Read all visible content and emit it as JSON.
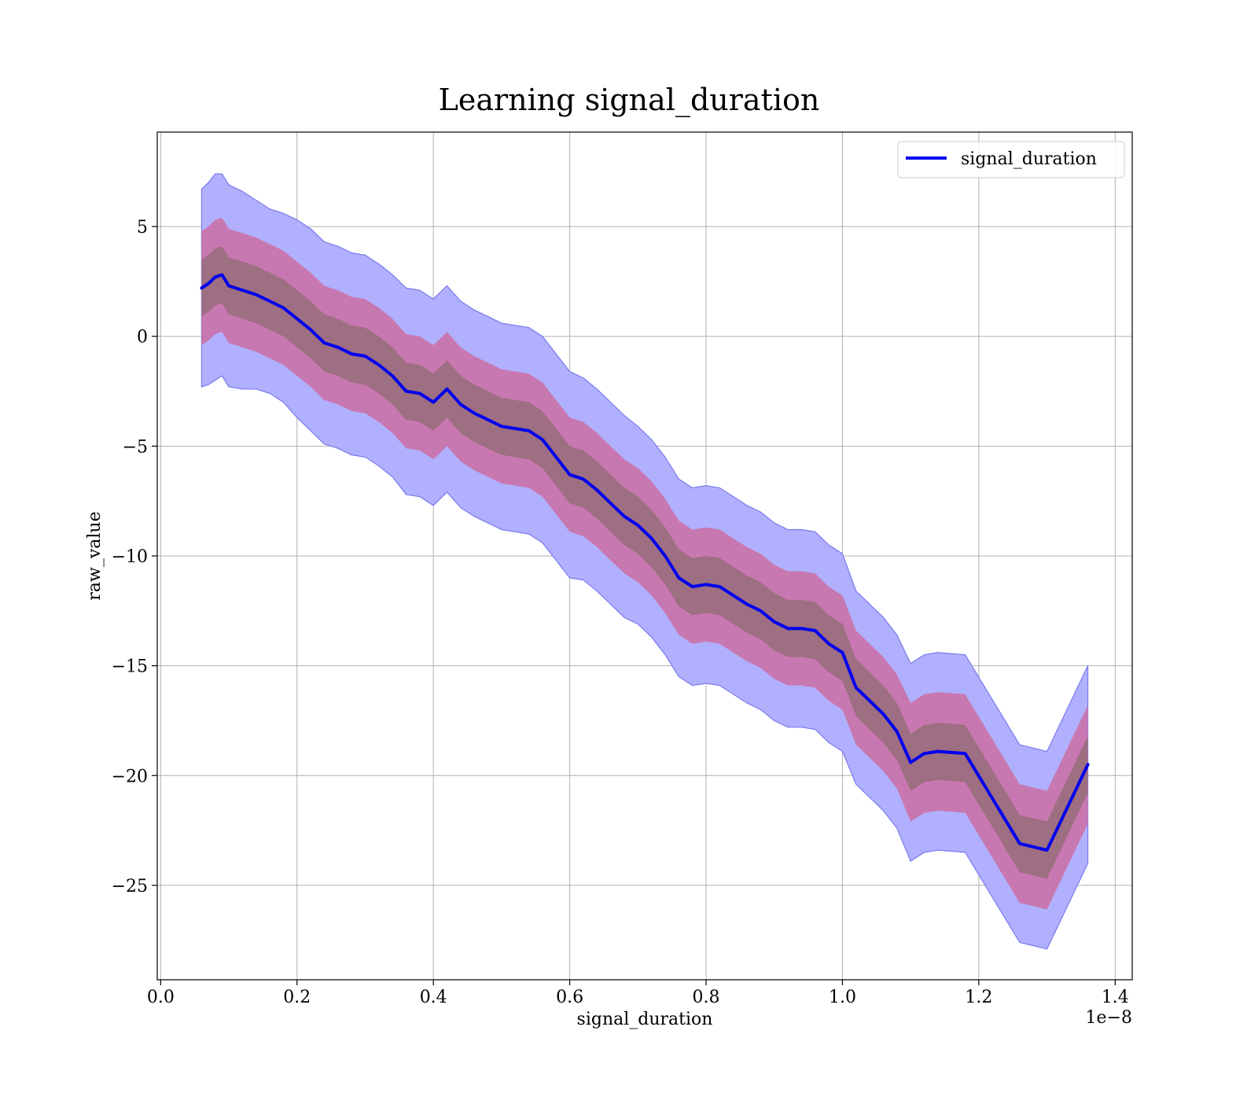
{
  "chart_data": {
    "type": "line",
    "title": "Learning signal_duration",
    "xlabel": "signal_duration",
    "ylabel": "raw_value",
    "x_offset_label": "1e−8",
    "xlim": [
      -0.005,
      1.425
    ],
    "ylim": [
      -29.3,
      9.3
    ],
    "xticks": [
      0.0,
      0.2,
      0.4,
      0.6,
      0.8,
      1.0,
      1.2,
      1.4
    ],
    "xtick_labels": [
      "0.0",
      "0.2",
      "0.4",
      "0.6",
      "0.8",
      "1.0",
      "1.2",
      "1.4"
    ],
    "yticks": [
      5,
      0,
      -5,
      -10,
      -15,
      -20,
      -25
    ],
    "ytick_labels": [
      "5",
      "0",
      "−5",
      "−10",
      "−15",
      "−20",
      "−25"
    ],
    "grid": true,
    "legend": {
      "position": "top-right",
      "entries": [
        "signal_duration"
      ]
    },
    "colors": {
      "line": "#0000ee",
      "band_outer": "#b0b0ff",
      "band_outer_edge": "#7a7aee",
      "band_middle": "#c878b0",
      "band_inner": "#9e6e82",
      "grid": "#b0b0b0"
    },
    "series": [
      {
        "name": "signal_duration",
        "x": [
          0.06,
          0.07,
          0.08,
          0.09,
          0.1,
          0.12,
          0.14,
          0.16,
          0.18,
          0.2,
          0.22,
          0.24,
          0.26,
          0.28,
          0.3,
          0.32,
          0.34,
          0.36,
          0.38,
          0.4,
          0.42,
          0.44,
          0.46,
          0.48,
          0.5,
          0.52,
          0.54,
          0.56,
          0.58,
          0.6,
          0.62,
          0.64,
          0.66,
          0.68,
          0.7,
          0.72,
          0.74,
          0.76,
          0.78,
          0.8,
          0.82,
          0.84,
          0.86,
          0.88,
          0.9,
          0.92,
          0.94,
          0.96,
          0.98,
          1.0,
          1.02,
          1.04,
          1.06,
          1.08,
          1.1,
          1.12,
          1.14,
          1.18,
          1.26,
          1.3,
          1.36
        ],
        "y": [
          2.2,
          2.4,
          2.7,
          2.8,
          2.3,
          2.1,
          1.9,
          1.6,
          1.3,
          0.8,
          0.3,
          -0.3,
          -0.5,
          -0.8,
          -0.9,
          -1.3,
          -1.8,
          -2.5,
          -2.6,
          -3.0,
          -2.4,
          -3.1,
          -3.5,
          -3.8,
          -4.1,
          -4.2,
          -4.3,
          -4.7,
          -5.5,
          -6.3,
          -6.5,
          -7.0,
          -7.6,
          -8.2,
          -8.6,
          -9.2,
          -10.0,
          -11.0,
          -11.4,
          -11.3,
          -11.4,
          -11.8,
          -12.2,
          -12.5,
          -13.0,
          -13.3,
          -13.3,
          -13.4,
          -14.0,
          -14.4,
          -16.0,
          -16.6,
          -17.2,
          -18.0,
          -19.4,
          -19.0,
          -18.9,
          -19.0,
          -23.1,
          -23.4,
          -19.5
        ],
        "band_outer": [
          4.5,
          4.6,
          4.7,
          4.6,
          4.6,
          4.5,
          4.3,
          4.2,
          4.3,
          4.5,
          4.6,
          4.6,
          4.6,
          4.6,
          4.6,
          4.6,
          4.6,
          4.7,
          4.7,
          4.7,
          4.7,
          4.7,
          4.7,
          4.7,
          4.7,
          4.7,
          4.7,
          4.7,
          4.7,
          4.7,
          4.6,
          4.6,
          4.6,
          4.6,
          4.5,
          4.5,
          4.5,
          4.5,
          4.5,
          4.5,
          4.5,
          4.5,
          4.5,
          4.5,
          4.5,
          4.5,
          4.5,
          4.5,
          4.5,
          4.5,
          4.4,
          4.4,
          4.4,
          4.4,
          4.5,
          4.5,
          4.5,
          4.5,
          4.5,
          4.5,
          4.5
        ],
        "band_middle": [
          2.6,
          2.6,
          2.6,
          2.6,
          2.6,
          2.6,
          2.6,
          2.6,
          2.6,
          2.6,
          2.6,
          2.6,
          2.6,
          2.6,
          2.6,
          2.6,
          2.6,
          2.6,
          2.6,
          2.6,
          2.6,
          2.6,
          2.6,
          2.6,
          2.6,
          2.6,
          2.6,
          2.6,
          2.6,
          2.6,
          2.6,
          2.6,
          2.6,
          2.6,
          2.6,
          2.6,
          2.6,
          2.6,
          2.6,
          2.6,
          2.6,
          2.6,
          2.6,
          2.6,
          2.6,
          2.6,
          2.6,
          2.6,
          2.6,
          2.6,
          2.6,
          2.6,
          2.6,
          2.6,
          2.7,
          2.7,
          2.7,
          2.7,
          2.7,
          2.7,
          2.7
        ],
        "band_inner": [
          1.3,
          1.3,
          1.3,
          1.3,
          1.3,
          1.3,
          1.3,
          1.3,
          1.3,
          1.3,
          1.3,
          1.3,
          1.3,
          1.3,
          1.3,
          1.3,
          1.3,
          1.3,
          1.3,
          1.3,
          1.3,
          1.3,
          1.3,
          1.3,
          1.3,
          1.3,
          1.3,
          1.3,
          1.3,
          1.3,
          1.3,
          1.3,
          1.3,
          1.3,
          1.3,
          1.3,
          1.3,
          1.3,
          1.3,
          1.3,
          1.3,
          1.3,
          1.3,
          1.3,
          1.3,
          1.3,
          1.3,
          1.3,
          1.3,
          1.3,
          1.3,
          1.3,
          1.3,
          1.3,
          1.3,
          1.3,
          1.3,
          1.3,
          1.3,
          1.3,
          1.3
        ]
      }
    ]
  }
}
